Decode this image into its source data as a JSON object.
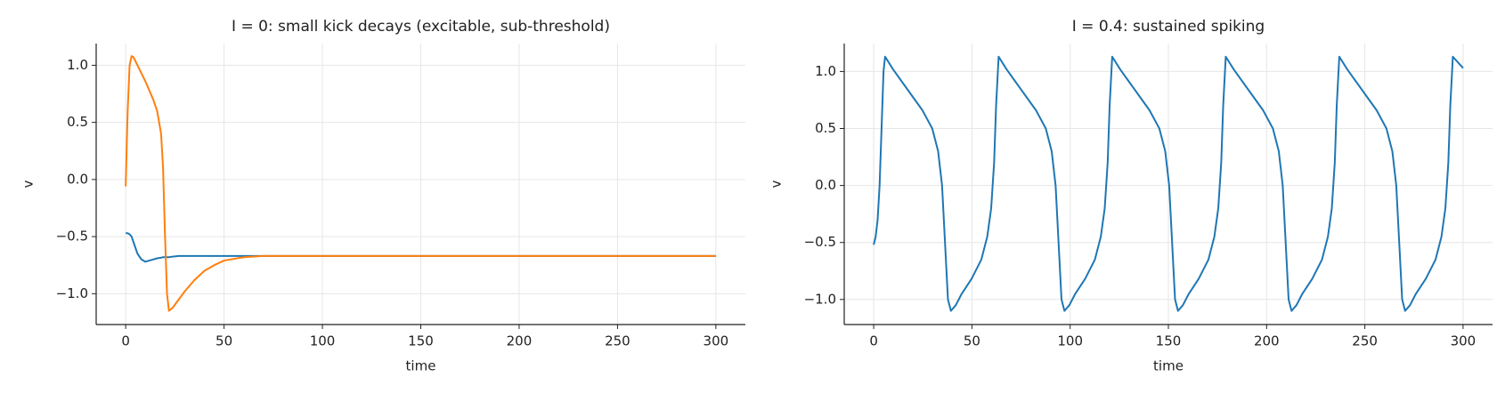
{
  "chart_data": [
    {
      "type": "line",
      "title": "I = 0: small kick decays (excitable, sub-threshold)",
      "xlabel": "time",
      "ylabel": "v",
      "x": [
        0,
        1,
        2,
        3,
        4,
        6,
        8,
        10,
        12,
        14,
        16,
        18,
        19,
        20,
        21,
        22,
        24,
        27,
        30,
        35,
        40,
        45,
        50,
        60,
        70,
        80,
        100,
        150,
        200,
        250,
        300
      ],
      "series": [
        {
          "color": "#1f77b4",
          "values": [
            -0.47,
            -0.47,
            -0.48,
            -0.5,
            -0.55,
            -0.65,
            -0.7,
            -0.72,
            -0.71,
            -0.7,
            -0.69,
            -0.685,
            -0.68,
            -0.68,
            -0.68,
            -0.68,
            -0.675,
            -0.67,
            -0.67,
            -0.67,
            -0.67,
            -0.67,
            -0.67,
            -0.67,
            -0.67,
            -0.67,
            -0.67,
            -0.67,
            -0.67,
            -0.67,
            -0.67
          ]
        },
        {
          "color": "#ff7f0e",
          "values": [
            -0.06,
            0.6,
            1.0,
            1.08,
            1.07,
            1.0,
            0.93,
            0.86,
            0.78,
            0.7,
            0.6,
            0.4,
            0.1,
            -0.5,
            -1.0,
            -1.15,
            -1.12,
            -1.05,
            -0.98,
            -0.88,
            -0.8,
            -0.75,
            -0.71,
            -0.68,
            -0.67,
            -0.67,
            -0.67,
            -0.67,
            -0.67,
            -0.67,
            -0.67
          ]
        }
      ],
      "xlim": [
        -15,
        315
      ],
      "ylim": [
        -1.27,
        1.19
      ],
      "xticks": [
        0,
        50,
        100,
        150,
        200,
        250,
        300
      ],
      "yticks": [
        {
          "value": -1.0,
          "label": "−1.0"
        },
        {
          "value": -0.5,
          "label": "−0.5"
        },
        {
          "value": 0.0,
          "label": "0.0"
        },
        {
          "value": 0.5,
          "label": "0.5"
        },
        {
          "value": 1.0,
          "label": "1.0"
        }
      ],
      "grid": true
    },
    {
      "type": "line",
      "title": "I = 0.4: sustained spiking",
      "xlabel": "time",
      "ylabel": "v",
      "x": [
        0,
        1,
        2,
        3,
        4,
        5,
        5.8,
        9.8,
        14.8,
        19.8,
        24.8,
        29.8,
        32.8,
        34.8,
        36.3,
        37.8,
        39.3,
        41.8,
        44.8,
        49.8,
        54.8,
        57.8,
        59.8,
        61.3,
        62.3,
        63.6,
        67.6,
        72.6,
        77.6,
        82.6,
        87.6,
        90.6,
        92.6,
        94.1,
        95.6,
        97.1,
        99.6,
        102.6,
        107.6,
        112.6,
        115.6,
        117.6,
        119.1,
        120.1,
        121.4,
        125.4,
        130.4,
        135.4,
        140.4,
        145.4,
        148.4,
        150.4,
        151.9,
        153.4,
        154.9,
        157.4,
        160.4,
        165.4,
        170.4,
        173.4,
        175.4,
        176.9,
        177.9,
        179.2,
        183.2,
        188.2,
        193.2,
        198.2,
        203.2,
        206.2,
        208.2,
        209.7,
        211.2,
        212.7,
        215.2,
        218.2,
        223.2,
        228.2,
        231.2,
        233.2,
        234.7,
        235.7,
        237,
        241,
        246,
        251,
        256,
        261,
        264,
        266,
        267.5,
        269,
        270.5,
        273,
        276,
        281,
        286,
        289,
        291,
        292.5,
        293.5,
        294.8,
        300
      ],
      "series": [
        {
          "color": "#1f77b4",
          "values": [
            -0.52,
            -0.45,
            -0.3,
            0.0,
            0.5,
            1.0,
            1.13,
            1.02,
            0.9,
            0.78,
            0.66,
            0.5,
            0.3,
            0,
            -0.5,
            -1.0,
            -1.1,
            -1.05,
            -0.95,
            -0.82,
            -0.65,
            -0.45,
            -0.2,
            0.2,
            0.7,
            1.13,
            1.02,
            0.9,
            0.78,
            0.66,
            0.5,
            0.3,
            0,
            -0.5,
            -1.0,
            -1.1,
            -1.05,
            -0.95,
            -0.82,
            -0.65,
            -0.45,
            -0.2,
            0.2,
            0.7,
            1.13,
            1.02,
            0.9,
            0.78,
            0.66,
            0.5,
            0.3,
            0,
            -0.5,
            -1.0,
            -1.1,
            -1.05,
            -0.95,
            -0.82,
            -0.65,
            -0.45,
            -0.2,
            0.2,
            0.7,
            1.13,
            1.02,
            0.9,
            0.78,
            0.66,
            0.5,
            0.3,
            0,
            -0.5,
            -1.0,
            -1.1,
            -1.05,
            -0.95,
            -0.82,
            -0.65,
            -0.45,
            -0.2,
            0.2,
            0.7,
            1.13,
            1.02,
            0.9,
            0.78,
            0.66,
            0.5,
            0.3,
            0,
            -0.5,
            -1.0,
            -1.1,
            -1.05,
            -0.95,
            -0.82,
            -0.65,
            -0.45,
            -0.2,
            0.2,
            0.7,
            1.13,
            1.03
          ]
        }
      ],
      "xlim": [
        -15,
        315
      ],
      "ylim": [
        -1.22,
        1.245
      ],
      "xticks": [
        0,
        50,
        100,
        150,
        200,
        250,
        300
      ],
      "yticks": [
        {
          "value": -1.0,
          "label": "−1.0"
        },
        {
          "value": -0.5,
          "label": "−0.5"
        },
        {
          "value": 0.0,
          "label": "0.0"
        },
        {
          "value": 0.5,
          "label": "0.5"
        },
        {
          "value": 1.0,
          "label": "1.0"
        }
      ],
      "grid": true
    }
  ]
}
